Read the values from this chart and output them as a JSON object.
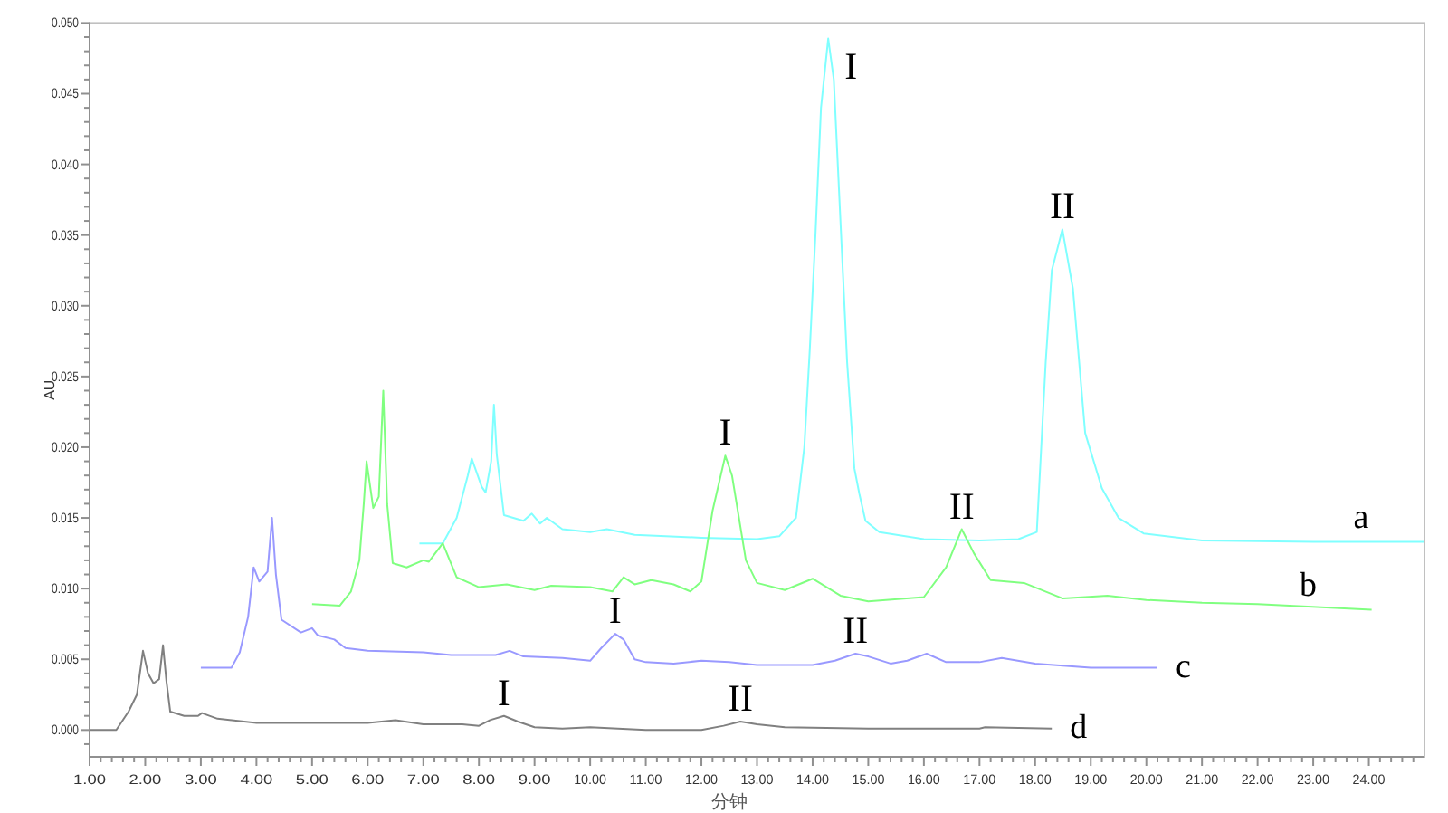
{
  "chart_data": {
    "type": "line",
    "xlabel": "分钟",
    "ylabel": "AU",
    "xlim": [
      1,
      25
    ],
    "ylim": [
      -0.0019,
      0.05
    ],
    "xticks": [
      {
        "value": 1,
        "label": "1.00"
      },
      {
        "value": 2,
        "label": "2.00"
      },
      {
        "value": 3,
        "label": "3.00"
      },
      {
        "value": 4,
        "label": "4.00"
      },
      {
        "value": 5,
        "label": "5.00"
      },
      {
        "value": 6,
        "label": "6.00"
      },
      {
        "value": 7,
        "label": "7.00"
      },
      {
        "value": 8,
        "label": "8.00"
      },
      {
        "value": 9,
        "label": "9.00"
      },
      {
        "value": 10,
        "label": "10.00"
      },
      {
        "value": 11,
        "label": "11.00"
      },
      {
        "value": 12,
        "label": "12.00"
      },
      {
        "value": 13,
        "label": "13.00"
      },
      {
        "value": 14,
        "label": "14.00"
      },
      {
        "value": 15,
        "label": "15.00"
      },
      {
        "value": 16,
        "label": "16.00"
      },
      {
        "value": 17,
        "label": "17.00"
      },
      {
        "value": 18,
        "label": "18.00"
      },
      {
        "value": 19,
        "label": "19.00"
      },
      {
        "value": 20,
        "label": "20.00"
      },
      {
        "value": 21,
        "label": "21.00"
      },
      {
        "value": 22,
        "label": "22.00"
      },
      {
        "value": 23,
        "label": "23.00"
      },
      {
        "value": 24,
        "label": "24.00"
      }
    ],
    "yticks": [
      {
        "value": 0,
        "label": "0.000"
      },
      {
        "value": 0.005,
        "label": "0.005"
      },
      {
        "value": 0.01,
        "label": "0.010"
      },
      {
        "value": 0.015,
        "label": "0.015"
      },
      {
        "value": 0.02,
        "label": "0.020"
      },
      {
        "value": 0.025,
        "label": "0.025"
      },
      {
        "value": 0.03,
        "label": "0.030"
      },
      {
        "value": 0.035,
        "label": "0.035"
      },
      {
        "value": 0.04,
        "label": "0.040"
      },
      {
        "value": 0.045,
        "label": "0.045"
      },
      {
        "value": 0.05,
        "label": "0.050"
      }
    ],
    "series": [
      {
        "name": "a",
        "color": "#80ffff",
        "x": [
          6.93,
          7.35,
          7.6,
          7.8,
          7.87,
          8.05,
          8.12,
          8.22,
          8.27,
          8.32,
          8.45,
          8.8,
          8.95,
          9.1,
          9.22,
          9.5,
          10.0,
          10.3,
          10.8,
          12.0,
          13.0,
          13.4,
          13.7,
          13.85,
          13.95,
          14.05,
          14.15,
          14.28,
          14.38,
          14.5,
          14.62,
          14.75,
          14.84,
          14.95,
          15.2,
          16.0,
          17.0,
          17.7,
          18.03,
          18.19,
          18.3,
          18.49,
          18.68,
          18.9,
          19.2,
          19.5,
          19.95,
          21.0,
          23.0,
          25.0
        ],
        "values": [
          0.0132,
          0.0132,
          0.015,
          0.018,
          0.0192,
          0.0172,
          0.0168,
          0.019,
          0.023,
          0.0195,
          0.0152,
          0.0148,
          0.0153,
          0.0146,
          0.015,
          0.0142,
          0.014,
          0.0142,
          0.0138,
          0.0136,
          0.0135,
          0.0137,
          0.015,
          0.02,
          0.027,
          0.035,
          0.044,
          0.0489,
          0.046,
          0.036,
          0.026,
          0.0185,
          0.0167,
          0.0148,
          0.014,
          0.0135,
          0.0134,
          0.0135,
          0.014,
          0.026,
          0.0325,
          0.0354,
          0.0312,
          0.021,
          0.0171,
          0.015,
          0.0139,
          0.0134,
          0.0133,
          0.0133
        ]
      },
      {
        "name": "b",
        "color": "#80ff80",
        "x": [
          5.0,
          5.5,
          5.7,
          5.85,
          5.93,
          5.98,
          6.1,
          6.2,
          6.28,
          6.35,
          6.45,
          6.7,
          7.0,
          7.1,
          7.35,
          7.6,
          8.0,
          8.5,
          9.0,
          9.3,
          10.0,
          10.4,
          10.6,
          10.8,
          11.1,
          11.5,
          11.8,
          12.0,
          12.2,
          12.43,
          12.55,
          12.8,
          13.0,
          13.5,
          14.0,
          14.5,
          15.0,
          16.0,
          16.4,
          16.68,
          16.9,
          17.2,
          17.8,
          18.5,
          19.3,
          20.0,
          21.0,
          22.0,
          24.05
        ],
        "values": [
          0.0089,
          0.0088,
          0.0098,
          0.012,
          0.016,
          0.019,
          0.0157,
          0.0165,
          0.024,
          0.016,
          0.0118,
          0.0115,
          0.012,
          0.0119,
          0.0132,
          0.0108,
          0.0101,
          0.0103,
          0.0099,
          0.0102,
          0.0101,
          0.0098,
          0.0108,
          0.0103,
          0.0106,
          0.0103,
          0.0098,
          0.0105,
          0.0155,
          0.0194,
          0.018,
          0.012,
          0.0104,
          0.0099,
          0.0107,
          0.0095,
          0.0091,
          0.0094,
          0.0115,
          0.0142,
          0.0125,
          0.0106,
          0.0104,
          0.0093,
          0.0095,
          0.0092,
          0.009,
          0.0089,
          0.0085
        ]
      },
      {
        "name": "c",
        "color": "#9999ff",
        "x": [
          3.0,
          3.55,
          3.7,
          3.85,
          3.95,
          4.05,
          4.2,
          4.28,
          4.35,
          4.45,
          4.8,
          5.0,
          5.1,
          5.4,
          5.6,
          6.0,
          7.0,
          7.5,
          8.3,
          8.55,
          8.8,
          9.5,
          10.0,
          10.2,
          10.45,
          10.6,
          10.8,
          11.0,
          11.5,
          12.0,
          12.5,
          13.0,
          14.0,
          14.4,
          14.77,
          15.0,
          15.4,
          15.7,
          16.05,
          16.4,
          17.0,
          17.4,
          18.0,
          19.0,
          20.2
        ],
        "values": [
          0.0044,
          0.0044,
          0.0055,
          0.008,
          0.0115,
          0.0105,
          0.0112,
          0.015,
          0.011,
          0.0078,
          0.0069,
          0.0072,
          0.0067,
          0.0064,
          0.0058,
          0.0056,
          0.0055,
          0.0053,
          0.0053,
          0.0056,
          0.0052,
          0.0051,
          0.0049,
          0.0058,
          0.0068,
          0.0064,
          0.005,
          0.0048,
          0.0047,
          0.0049,
          0.0048,
          0.0046,
          0.0046,
          0.0049,
          0.0054,
          0.0052,
          0.0047,
          0.0049,
          0.0054,
          0.0048,
          0.0048,
          0.0051,
          0.0047,
          0.0044,
          0.0044
        ]
      },
      {
        "name": "d",
        "color": "#808080",
        "x": [
          1.0,
          1.48,
          1.7,
          1.85,
          1.96,
          2.05,
          2.15,
          2.25,
          2.32,
          2.38,
          2.45,
          2.7,
          2.95,
          3.02,
          3.3,
          4.0,
          5.0,
          6.0,
          6.5,
          7.0,
          7.7,
          8.0,
          8.2,
          8.45,
          8.7,
          9.0,
          9.5,
          10.0,
          11.0,
          12.0,
          12.4,
          12.7,
          13.0,
          13.5,
          15.0,
          17.0,
          17.1,
          18.3
        ],
        "values": [
          0,
          0,
          0.0013,
          0.0025,
          0.0056,
          0.004,
          0.0033,
          0.0036,
          0.006,
          0.0035,
          0.0013,
          0.001,
          0.001,
          0.0012,
          0.0008,
          0.0005,
          0.0005,
          0.0005,
          0.0007,
          0.0004,
          0.0004,
          0.0003,
          0.0007,
          0.001,
          0.0006,
          0.0002,
          0.0001,
          0.0002,
          0,
          0,
          0.0003,
          0.0006,
          0.0004,
          0.0002,
          0.0001,
          0.0001,
          0.0002,
          0.0001
        ]
      }
    ],
    "annotations": [
      {
        "text": "I",
        "x": 14.28,
        "y": 0.0489
      },
      {
        "text": "II",
        "x": 18.49,
        "y": 0.0354
      },
      {
        "text": "I",
        "x": 12.43,
        "y": 0.0194
      },
      {
        "text": "II",
        "x": 16.68,
        "y": 0.0142
      },
      {
        "text": "I",
        "x": 10.45,
        "y": 0.0068
      },
      {
        "text": "II",
        "x": 14.77,
        "y": 0.0054
      },
      {
        "text": "I",
        "x": 8.45,
        "y": 0.001
      },
      {
        "text": "II",
        "x": 12.7,
        "y": 0.0006
      }
    ]
  }
}
